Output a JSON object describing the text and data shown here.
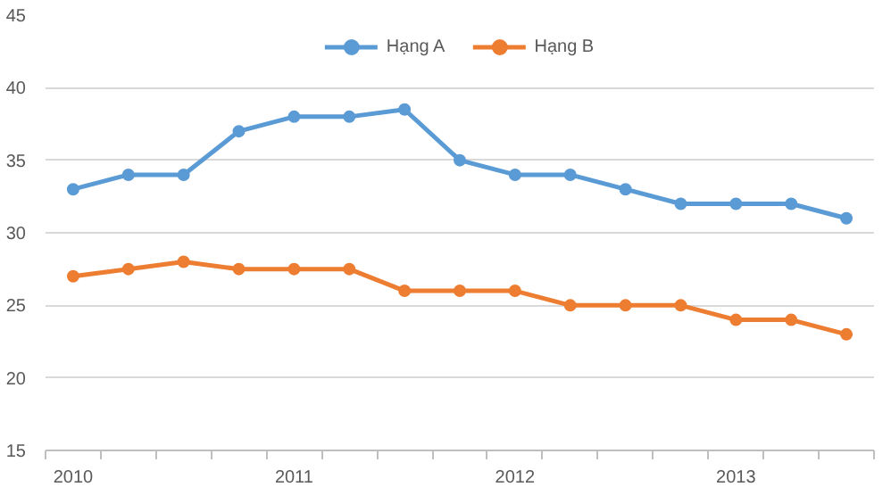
{
  "chart_data": {
    "type": "line",
    "categories": [
      "2010",
      null,
      null,
      null,
      "2011",
      null,
      null,
      null,
      "2012",
      null,
      null,
      null,
      "2013",
      null,
      null
    ],
    "series": [
      {
        "name": "Hạng A",
        "color": "#5b9bd5",
        "values": [
          33,
          34,
          34,
          37,
          38,
          38,
          38.5,
          35,
          34,
          34,
          33,
          32,
          32,
          32,
          31
        ]
      },
      {
        "name": "Hạng B",
        "color": "#ed7d31",
        "values": [
          27,
          27.5,
          28,
          27.5,
          27.5,
          27.5,
          26,
          26,
          26,
          25,
          25,
          25,
          24,
          24,
          23
        ]
      }
    ],
    "ylim": [
      15,
      45
    ],
    "yticks": [
      15,
      20,
      25,
      30,
      35,
      40,
      45
    ],
    "grid": "y",
    "legend": "top",
    "marker": "circle",
    "line_style": "solid"
  }
}
